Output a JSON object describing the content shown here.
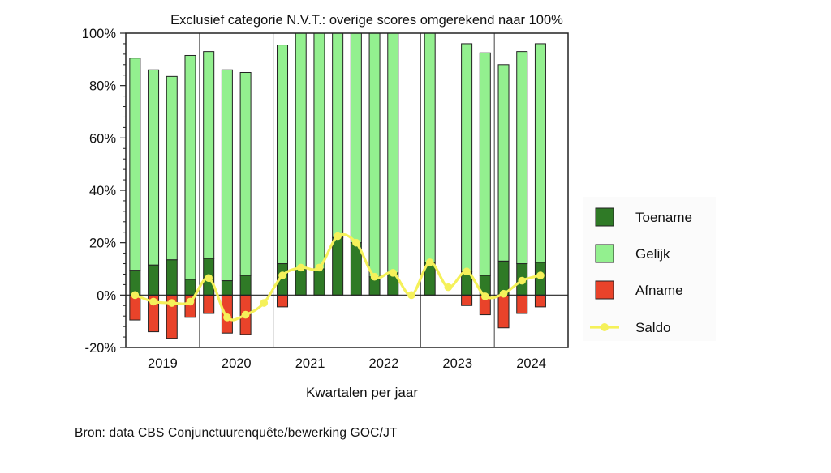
{
  "source_note": "Bron: data CBS Conjunctuurenquête/bewerking GOC/JT",
  "chart_data": {
    "type": "bar",
    "title": "Exclusief categorie N.V.T.: overige scores omgerekend naar 100%",
    "xlabel": "Kwartalen per jaar",
    "ylabel": "",
    "ylim": [
      -20,
      100
    ],
    "yticks": [
      "-20%",
      "0%",
      "20%",
      "40%",
      "60%",
      "80%",
      "100%"
    ],
    "years": [
      "2019",
      "2020",
      "2021",
      "2022",
      "2023",
      "2024"
    ],
    "grid": false,
    "legend_position": "right",
    "colors": {
      "toename": "#2f7a26",
      "gelijk": "#93f08f",
      "afname": "#e9432a",
      "saldo": "#f5f15a"
    },
    "quarters_per_year": 4,
    "series": [
      {
        "name": "Toename",
        "type": "bar",
        "values": [
          9.5,
          11.5,
          13.5,
          6,
          14,
          5.5,
          7.5,
          null,
          12,
          10,
          10,
          22,
          20,
          7,
          8.5,
          null,
          12.5,
          null,
          9,
          7.5,
          13,
          12,
          12.5,
          null
        ]
      },
      {
        "name": "Gelijk",
        "type": "bar",
        "values": [
          81,
          74.5,
          70,
          85.5,
          79,
          80.5,
          77.5,
          null,
          83.5,
          90,
          90,
          78,
          80,
          93,
          91.5,
          null,
          87.5,
          null,
          87,
          85,
          75,
          81,
          83.5,
          null
        ]
      },
      {
        "name": "Afname",
        "type": "bar",
        "values": [
          -9.5,
          -14,
          -16.5,
          -8.5,
          -7,
          -14.5,
          -15,
          null,
          -4.5,
          0,
          0,
          0,
          0,
          0,
          0,
          null,
          0,
          null,
          -4,
          -7.5,
          -12.5,
          -7,
          -4.5,
          null
        ]
      },
      {
        "name": "Saldo",
        "type": "line",
        "values": [
          0,
          -2.5,
          -3,
          -2.5,
          6.5,
          -8.5,
          -7.5,
          -3,
          7.5,
          10.5,
          10.5,
          22.5,
          20,
          7,
          8.5,
          0,
          12.5,
          3,
          9,
          -0.5,
          0.5,
          5.5,
          7.5,
          null
        ]
      }
    ]
  }
}
